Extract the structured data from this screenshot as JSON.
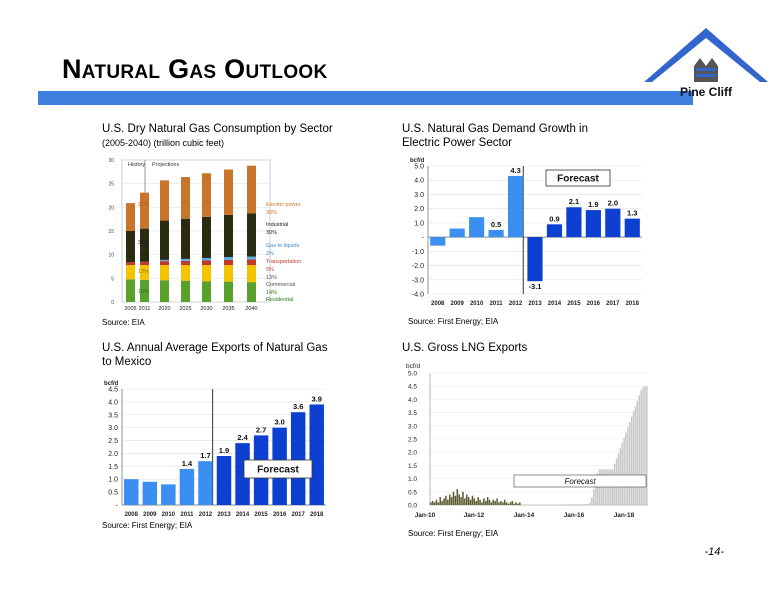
{
  "slide": {
    "title": "Natural Gas Outlook",
    "logo_text": "Pine Cliff",
    "page_number": "-14-"
  },
  "colors": {
    "title_bar": "#3f7fe0",
    "bar_blue": "#0d3fd1",
    "bar_light_blue": "#3b8ff0",
    "lng_bars": "#c8c8c8",
    "lng_history": "#5a5a2e",
    "logo_blue": "#3366cc"
  },
  "panels": {
    "consumption": {
      "title": "U.S. Dry Natural Gas Consumption by Sector",
      "subtitle": "(2005-2040) (trillion cubic feet)",
      "source": "Source: EIA"
    },
    "power_demand": {
      "title_line1": "U.S. Natural Gas Demand Growth in",
      "title_line2": "Electric Power Sector",
      "source": "Source: First Energy; EIA"
    },
    "exports_mexico": {
      "title_line1": "U.S. Annual Average Exports of Natural Gas",
      "title_line2": "to Mexico",
      "source": "Source: First Energy; EIA"
    },
    "lng_exports": {
      "title": "U.S. Gross LNG Exports",
      "source": "Source: First Energy; EIA"
    }
  },
  "chart_data": [
    {
      "type": "bar",
      "stacked": true,
      "categories": [
        "2005",
        "2011",
        "2020",
        "2025",
        "2030",
        "2035",
        "2040"
      ],
      "ylim": [
        0,
        30
      ],
      "yticks": [
        "0",
        "5",
        "10",
        "15",
        "20",
        "25",
        "30"
      ],
      "period_labels": [
        "History",
        "Projections"
      ],
      "series": [
        {
          "name": "Residential",
          "color": "#5aa02c",
          "values": [
            4.8,
            4.7,
            4.6,
            4.5,
            4.4,
            4.3,
            4.2
          ]
        },
        {
          "name": "Commercial",
          "color": "#f5c400",
          "values": [
            3.0,
            3.1,
            3.2,
            3.3,
            3.4,
            3.5,
            3.6
          ]
        },
        {
          "name": "Transportation",
          "color": "#c0392b",
          "values": [
            0.6,
            0.7,
            0.8,
            0.9,
            1.0,
            1.1,
            1.2
          ]
        },
        {
          "name": "Gas to liquids",
          "color": "#5dade2",
          "values": [
            0.0,
            0.0,
            0.3,
            0.4,
            0.5,
            0.6,
            0.6
          ]
        },
        {
          "name": "Industrial",
          "color": "#2b2b14",
          "values": [
            6.6,
            7.0,
            8.3,
            8.5,
            8.7,
            8.9,
            9.1
          ]
        },
        {
          "name": "Electric power",
          "color": "#c8752b",
          "values": [
            5.9,
            7.6,
            8.5,
            8.8,
            9.2,
            9.6,
            10.1
          ]
        }
      ],
      "annotations": [
        "31%",
        "30%",
        "13%",
        "19%",
        "2%",
        "8%",
        "Electric power",
        "30%",
        "Industrial",
        "30%",
        "Gas to liquids",
        "2%",
        "Transportation",
        "5%",
        "13%",
        "Commercial",
        "14%",
        "Residential"
      ]
    },
    {
      "type": "bar",
      "categories": [
        "2008",
        "2009",
        "2010",
        "2011",
        "2012",
        "2013",
        "2014",
        "2015",
        "2016",
        "2017",
        "2018"
      ],
      "values": [
        -0.6,
        0.6,
        1.4,
        0.5,
        4.3,
        -3.1,
        0.9,
        2.1,
        1.9,
        2.0,
        1.3
      ],
      "data_labels": [
        "",
        "",
        "",
        "0.5",
        "4.3",
        "-3.1",
        "0.9",
        "2.1",
        "1.9",
        "2.0",
        "1.3"
      ],
      "forecast_from_index": 5,
      "ylabel": "bcf/d",
      "ylim": [
        -4.0,
        5.0
      ],
      "yticks": [
        "5.0",
        "4.0",
        "3.0",
        "2.0",
        "1.0",
        "-",
        "-1.0",
        "-2.0",
        "-3.0",
        "-4.0"
      ],
      "annotation": "Forecast"
    },
    {
      "type": "bar",
      "categories": [
        "2008",
        "2009",
        "2010",
        "2011",
        "2012",
        "2013",
        "2014",
        "2015",
        "2016",
        "2017",
        "2018"
      ],
      "values": [
        1.0,
        0.9,
        0.8,
        1.4,
        1.7,
        1.9,
        2.4,
        2.7,
        3.0,
        3.6,
        3.9
      ],
      "data_labels": [
        "",
        "",
        "",
        "1.4",
        "1.7",
        "1.9",
        "2.4",
        "2.7",
        "3.0",
        "3.6",
        "3.9"
      ],
      "forecast_from_index": 5,
      "ylabel": "bcf/d",
      "ylim": [
        0,
        4.5
      ],
      "yticks": [
        "4.5",
        "4.0",
        "3.5",
        "3.0",
        "2.5",
        "2.0",
        "1.5",
        "1.0",
        "0.5",
        "-"
      ],
      "annotation": "Forecast"
    },
    {
      "type": "bar",
      "xlabels": [
        "Jan-10",
        "Jan-12",
        "Jan-14",
        "Jan-16",
        "Jan-18"
      ],
      "ylabel": "bcf/d",
      "ylim": [
        0,
        5.0
      ],
      "yticks": [
        "5.0",
        "4.5",
        "4.0",
        "3.5",
        "3.0",
        "2.5",
        "2.0",
        "1.5",
        "1.0",
        "0.5",
        "0.0"
      ],
      "annotation": "Forecast",
      "history_months": 48,
      "monthly_values": [
        0.1,
        0.15,
        0.1,
        0.2,
        0.1,
        0.3,
        0.15,
        0.25,
        0.35,
        0.2,
        0.4,
        0.3,
        0.5,
        0.35,
        0.6,
        0.4,
        0.3,
        0.5,
        0.25,
        0.4,
        0.3,
        0.2,
        0.35,
        0.25,
        0.15,
        0.3,
        0.2,
        0.1,
        0.25,
        0.15,
        0.3,
        0.2,
        0.1,
        0.2,
        0.15,
        0.25,
        0.1,
        0.15,
        0.1,
        0.2,
        0.1,
        0.05,
        0.1,
        0.15,
        0.05,
        0.1,
        0.05,
        0.1,
        0.02,
        0.02,
        0.02,
        0.02,
        0.02,
        0.02,
        0.02,
        0.02,
        0.02,
        0.02,
        0.02,
        0.02,
        0.02,
        0.02,
        0.02,
        0.02,
        0.02,
        0.02,
        0.02,
        0.02,
        0.02,
        0.02,
        0.02,
        0.02,
        0.03,
        0.03,
        0.03,
        0.03,
        0.03,
        0.03,
        0.03,
        0.03,
        0.03,
        0.03,
        0.03,
        0.03,
        0.1,
        0.3,
        0.6,
        0.9,
        1.2,
        1.35,
        1.35,
        1.35,
        1.35,
        1.35,
        1.35,
        1.35,
        1.35,
        1.55,
        1.75,
        1.95,
        2.15,
        2.35,
        2.55,
        2.75,
        2.95,
        3.15,
        3.35,
        3.55,
        3.75,
        3.95,
        4.15,
        4.35,
        4.45,
        4.5,
        4.5
      ]
    }
  ]
}
